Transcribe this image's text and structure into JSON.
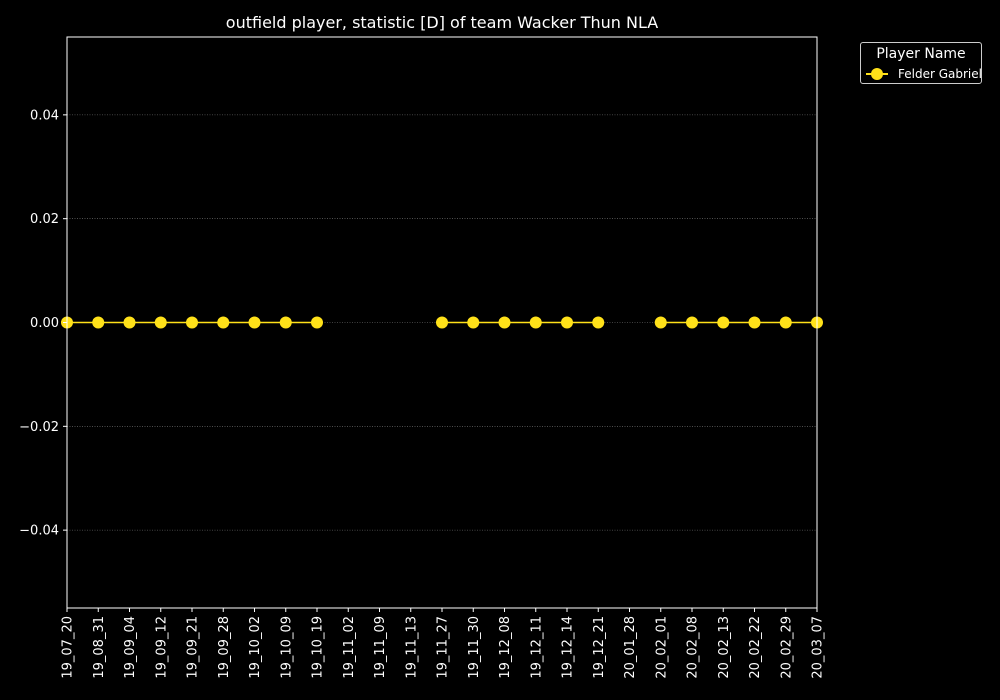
{
  "chart_data": {
    "type": "line",
    "title": "outfield player, statistic [D] of team Wacker Thun NLA",
    "xlabel": "",
    "ylabel": "",
    "categories": [
      "19_07_20",
      "19_08_31",
      "19_09_04",
      "19_09_12",
      "19_09_21",
      "19_09_28",
      "19_10_02",
      "19_10_09",
      "19_10_19",
      "19_11_02",
      "19_11_09",
      "19_11_13",
      "19_11_27",
      "19_11_30",
      "19_12_08",
      "19_12_11",
      "19_12_14",
      "19_12_21",
      "20_01_28",
      "20_02_01",
      "20_02_08",
      "20_02_13",
      "20_02_22",
      "20_02_29",
      "20_03_07"
    ],
    "series": [
      {
        "name": "Felder Gabriel",
        "color": "#ffe119",
        "values": [
          0,
          0,
          0,
          0,
          0,
          0,
          0,
          0,
          0,
          null,
          null,
          null,
          0,
          0,
          0,
          0,
          0,
          0,
          null,
          0,
          0,
          0,
          0,
          0,
          0
        ]
      }
    ],
    "ylim": [
      -0.055,
      0.055
    ],
    "yticks": [
      -0.04,
      -0.02,
      0.0,
      0.02,
      0.04
    ],
    "ytick_labels": [
      "−0.04",
      "−0.02",
      "0.00",
      "0.02",
      "0.04"
    ],
    "grid": "horizontal dotted",
    "legend": {
      "title": "Player Name",
      "placement": "outside-top-right"
    },
    "colors": {
      "background": "#000000",
      "axes": "#ffffff",
      "grid": "#808080"
    }
  }
}
